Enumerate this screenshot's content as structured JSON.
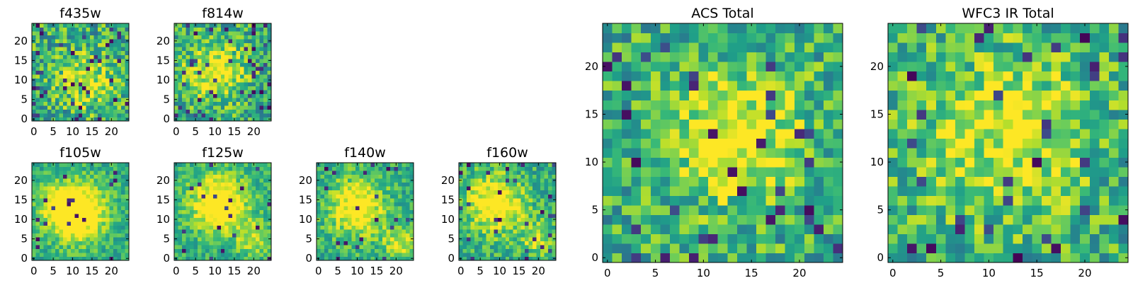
{
  "chart_data": [
    {
      "type": "heatmap",
      "title": "f435w",
      "xticks": [
        0,
        5,
        10,
        15,
        20
      ],
      "yticks": [
        0,
        5,
        10,
        15,
        20
      ],
      "xlim": [
        0,
        25
      ],
      "ylim": [
        0,
        25
      ],
      "grid_size": 25,
      "colormap": "viridis",
      "hot_spots": [
        {
          "x": 14,
          "y": 10,
          "s": 5,
          "w": 0.3
        }
      ],
      "noise": 0.55,
      "dark_fraction": 0.06,
      "seed": 11
    },
    {
      "type": "heatmap",
      "title": "f814w",
      "xticks": [
        0,
        5,
        10,
        15,
        20
      ],
      "yticks": [
        0,
        5,
        10,
        15,
        20
      ],
      "xlim": [
        0,
        25
      ],
      "ylim": [
        0,
        25
      ],
      "grid_size": 25,
      "colormap": "viridis",
      "hot_spots": [
        {
          "x": 10,
          "y": 12,
          "s": 5,
          "w": 0.45
        }
      ],
      "noise": 0.5,
      "dark_fraction": 0.07,
      "seed": 23
    },
    {
      "type": "heatmap",
      "title": "f105w",
      "xticks": [
        0,
        5,
        10,
        15,
        20
      ],
      "yticks": [
        0,
        5,
        10,
        15,
        20
      ],
      "xlim": [
        0,
        25
      ],
      "ylim": [
        0,
        25
      ],
      "grid_size": 25,
      "colormap": "viridis",
      "hot_spots": [
        {
          "x": 11,
          "y": 12,
          "s": 5,
          "w": 0.7
        },
        {
          "x": 6,
          "y": 14,
          "s": 3,
          "w": 0.3
        }
      ],
      "noise": 0.32,
      "dark_fraction": 0.03,
      "seed": 37
    },
    {
      "type": "heatmap",
      "title": "f125w",
      "xticks": [
        0,
        5,
        10,
        15,
        20
      ],
      "yticks": [
        0,
        5,
        10,
        15,
        20
      ],
      "xlim": [
        0,
        25
      ],
      "ylim": [
        0,
        25
      ],
      "grid_size": 25,
      "colormap": "viridis",
      "hot_spots": [
        {
          "x": 11,
          "y": 14,
          "s": 5,
          "w": 0.6
        },
        {
          "x": 20,
          "y": 5,
          "s": 3,
          "w": 0.3
        }
      ],
      "noise": 0.32,
      "dark_fraction": 0.03,
      "seed": 41
    },
    {
      "type": "heatmap",
      "title": "f140w",
      "xticks": [
        0,
        5,
        10,
        15,
        20
      ],
      "yticks": [
        0,
        5,
        10,
        15,
        20
      ],
      "xlim": [
        0,
        25
      ],
      "ylim": [
        0,
        25
      ],
      "grid_size": 25,
      "colormap": "viridis",
      "hot_spots": [
        {
          "x": 10,
          "y": 13,
          "s": 5,
          "w": 0.5
        },
        {
          "x": 21,
          "y": 4,
          "s": 3,
          "w": 0.35
        }
      ],
      "noise": 0.36,
      "dark_fraction": 0.04,
      "seed": 53
    },
    {
      "type": "heatmap",
      "title": "f160w",
      "xticks": [
        0,
        5,
        10,
        15,
        20
      ],
      "yticks": [
        0,
        5,
        10,
        15,
        20
      ],
      "xlim": [
        0,
        25
      ],
      "ylim": [
        0,
        25
      ],
      "grid_size": 25,
      "colormap": "viridis",
      "hot_spots": [
        {
          "x": 9,
          "y": 14,
          "s": 5,
          "w": 0.55
        },
        {
          "x": 20,
          "y": 5,
          "s": 3,
          "w": 0.3
        }
      ],
      "noise": 0.38,
      "dark_fraction": 0.04,
      "seed": 67
    },
    {
      "type": "heatmap",
      "title": "ACS Total",
      "xticks": [
        0,
        5,
        10,
        15,
        20
      ],
      "yticks": [
        0,
        5,
        10,
        15,
        20
      ],
      "xlim": [
        0,
        25
      ],
      "ylim": [
        0,
        25
      ],
      "grid_size": 25,
      "colormap": "viridis",
      "hot_spots": [
        {
          "x": 13,
          "y": 13,
          "s": 5,
          "w": 0.4
        }
      ],
      "noise": 0.5,
      "dark_fraction": 0.06,
      "seed": 79
    },
    {
      "type": "heatmap",
      "title": "WFC3 IR Total",
      "xticks": [
        0,
        5,
        10,
        15,
        20
      ],
      "yticks": [
        0,
        5,
        10,
        15,
        20
      ],
      "xlim": [
        0,
        25
      ],
      "ylim": [
        0,
        25
      ],
      "grid_size": 25,
      "colormap": "viridis",
      "hot_spots": [
        {
          "x": 12,
          "y": 13,
          "s": 6,
          "w": 0.35
        }
      ],
      "noise": 0.5,
      "dark_fraction": 0.05,
      "seed": 97
    }
  ]
}
